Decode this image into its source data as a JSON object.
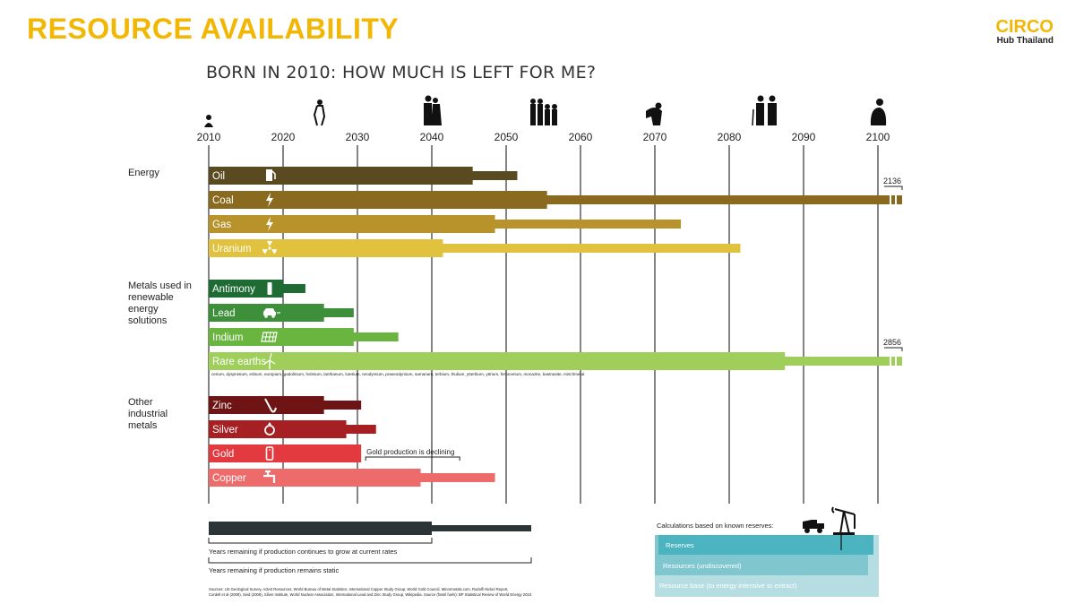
{
  "header": {
    "title": "RESOURCE AVAILABILITY",
    "logo_word": "CIRCO",
    "logo_sub": "Hub Thailand"
  },
  "chart_data": {
    "type": "bar",
    "title": "BORN IN 2010: HOW MUCH IS LEFT FOR ME?",
    "x_ticks": [
      2010,
      2020,
      2030,
      2040,
      2050,
      2060,
      2070,
      2080,
      2090,
      2100
    ],
    "xlim": [
      2010,
      2103
    ],
    "groups": [
      {
        "label": "Energy",
        "items": [
          {
            "name": "Oil",
            "icon": "fuel-pump-icon",
            "color": "#5a4a1f",
            "growth_end": 2045.5,
            "static_end": 2051.5
          },
          {
            "name": "Coal",
            "icon": "lightning-icon",
            "color": "#8a6a1e",
            "growth_end": 2055.5,
            "static_end": 2136,
            "static_label": "2136"
          },
          {
            "name": "Gas",
            "icon": "lightning-icon",
            "color": "#b8922a",
            "growth_end": 2048.5,
            "static_end": 2073.5
          },
          {
            "name": "Uranium",
            "icon": "radiation-icon",
            "color": "#e0c23e",
            "growth_end": 2041.5,
            "static_end": 2081.5
          }
        ]
      },
      {
        "label": "Metals used in renewable energy solutions",
        "items": [
          {
            "name": "Antimony",
            "icon": "battery-icon",
            "color": "#1e6b33",
            "growth_end": 2020,
            "static_end": 2023
          },
          {
            "name": "Lead",
            "icon": "car-icon",
            "color": "#3d8f3a",
            "growth_end": 2025.5,
            "static_end": 2029.5
          },
          {
            "name": "Indium",
            "icon": "solar-panel-icon",
            "color": "#6ab440",
            "growth_end": 2029.5,
            "static_end": 2035.5
          },
          {
            "name": "Rare earths",
            "icon": "wind-turbine-icon",
            "color": "#9fce5a",
            "growth_end": 2087.5,
            "static_end": 2856,
            "static_label": "2856",
            "note": "cerium, dysprosium, erbium, europium, gadolinium, holmium, lanthanum, lutetium, neodymium, praseodymium, samarium, terbium, thulium, ytterbium, yttrium, ferrocerium, monazite, bastnasite, mischmetal"
          }
        ]
      },
      {
        "label": "Other industrial metals",
        "items": [
          {
            "name": "Zinc",
            "icon": "saxophone-icon",
            "color": "#6e1414",
            "growth_end": 2025.5,
            "static_end": 2030.5
          },
          {
            "name": "Silver",
            "icon": "ring-icon",
            "color": "#a61f23",
            "growth_end": 2028.5,
            "static_end": 2032.5
          },
          {
            "name": "Gold",
            "icon": "phone-icon",
            "color": "#e23a3f",
            "growth_end": 2030.5,
            "static_end": 2030.5,
            "annotation": "Gold production is declining"
          },
          {
            "name": "Copper",
            "icon": "faucet-icon",
            "color": "#ee6b6c",
            "growth_end": 2038.5,
            "static_end": 2048.5
          }
        ]
      }
    ],
    "legend": {
      "growth_label": "Years remaining if production continues to grow at current rates",
      "static_label": "Years remaining if production remains static",
      "calc_title": "Calculations based on known reserves:",
      "reserves": "Reserves",
      "resources": "Resources (undiscovered)",
      "resource_base": "Resource base (to energy intensive to extract)"
    },
    "sources": [
      "Sources: US Geological Survey, Advnt Resources, World Bureau of Metal Statistics, International Copper Study Group, World Gold Council, Minormetals.com, Rodolfi Nickel Report,",
      "Cordell et al (2009), Seid (2008), Silver Institute, World Nuclear Association, International Lead and Zinc Study Group, Wikipedia. Source (fossil fuels): BP Statistical Review of World Energy 2010."
    ],
    "colors": {
      "grid": "#333333",
      "legend_bar": "#2b3436",
      "reserves": "#4cb3c0",
      "resources": "#7fc6cf",
      "resource_base": "#b6dde2"
    }
  }
}
